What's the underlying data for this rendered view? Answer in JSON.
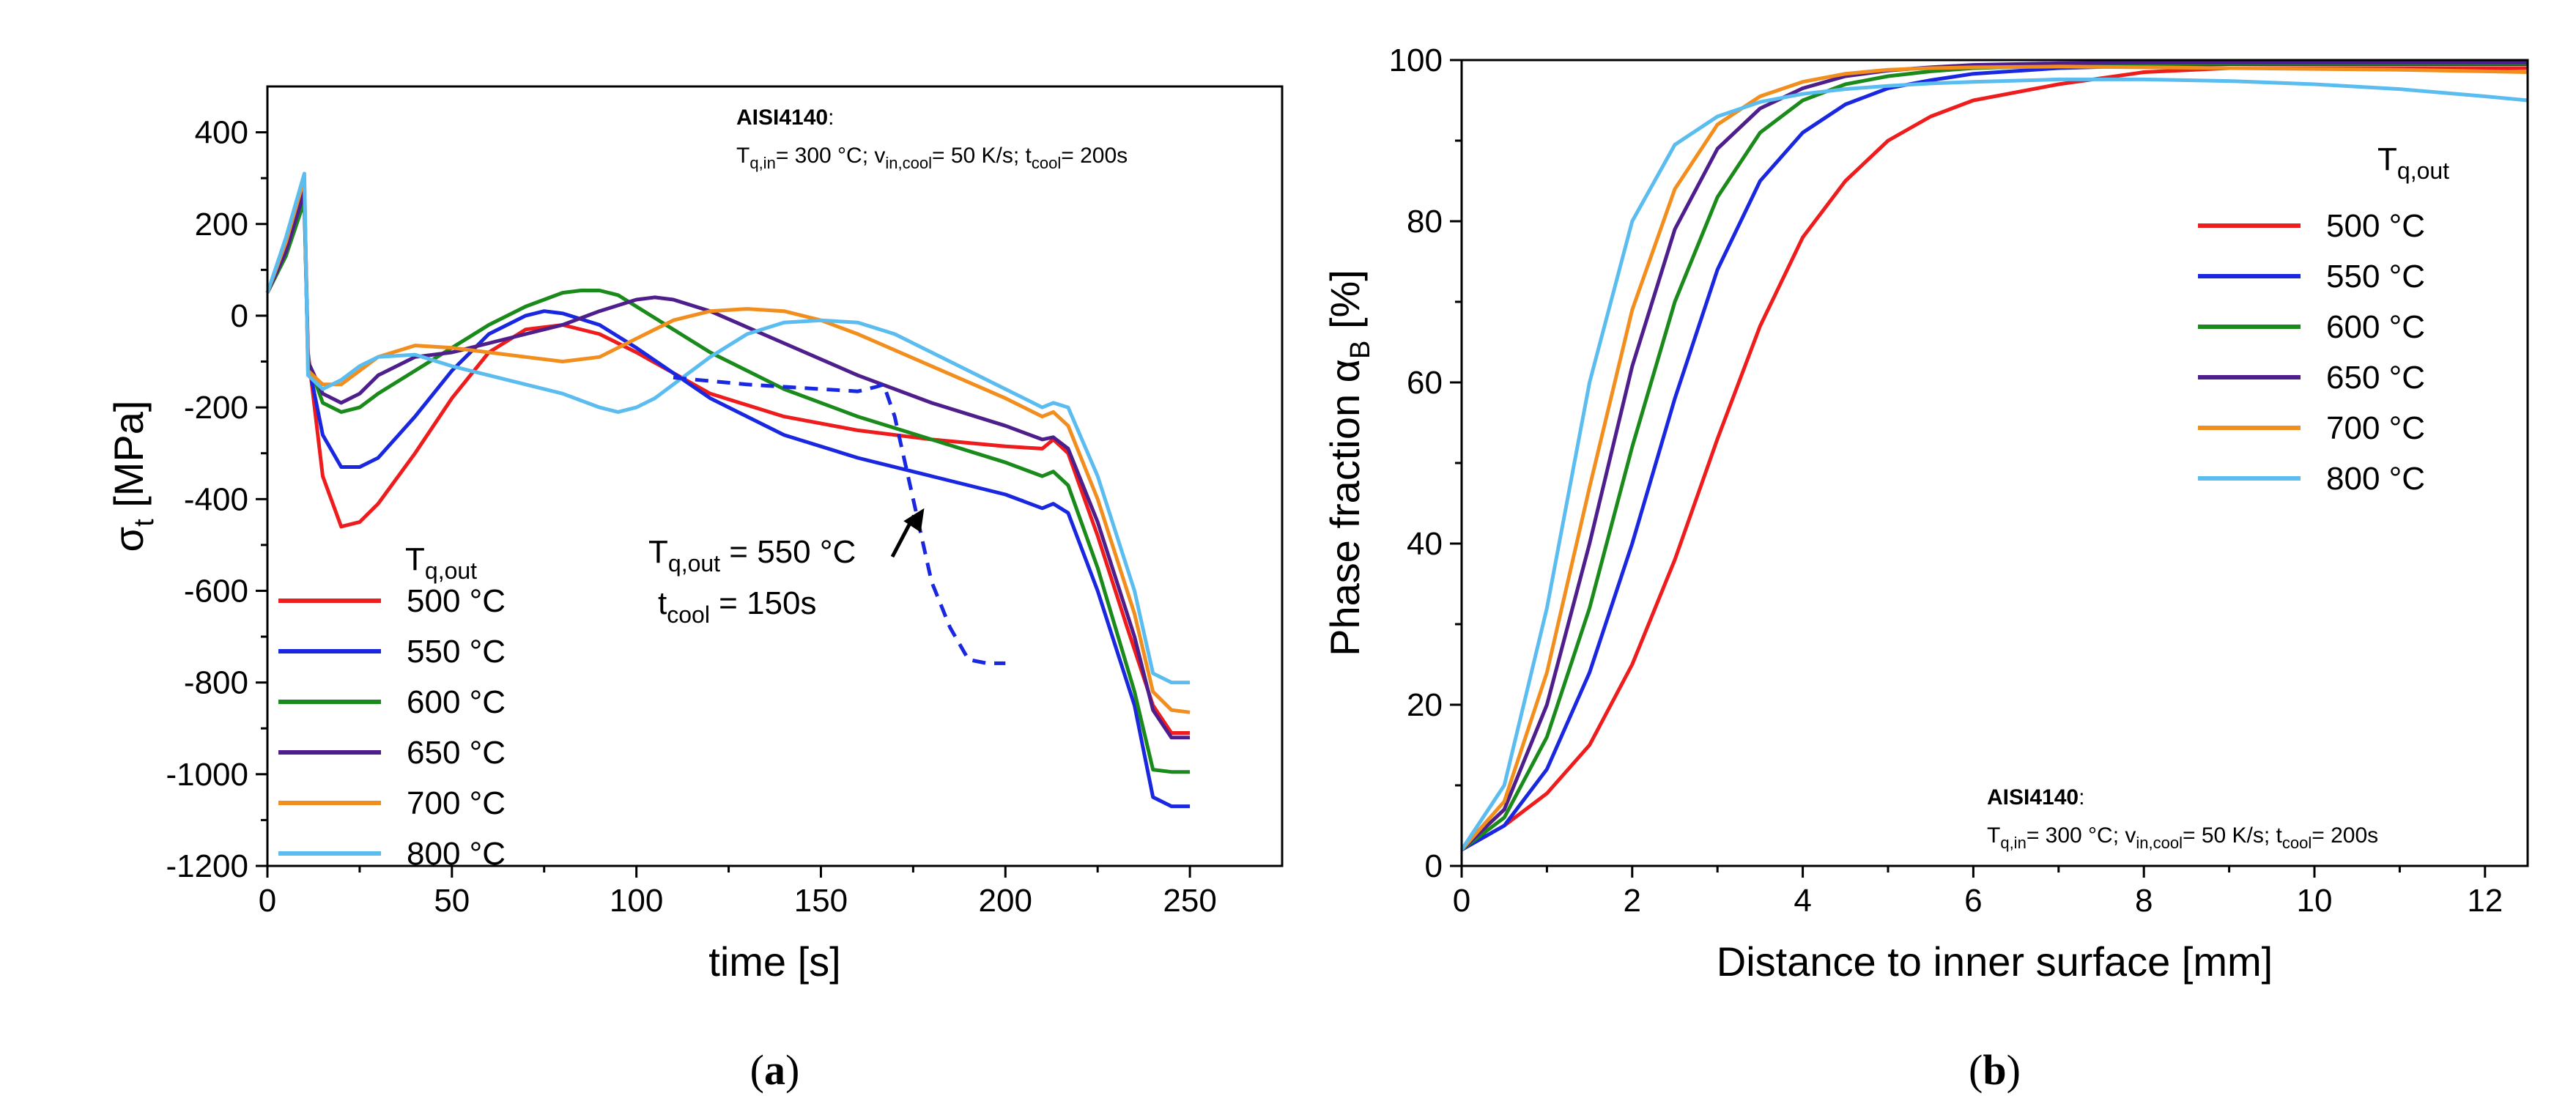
{
  "chart_data": [
    {
      "type": "line",
      "panel_label": "a",
      "xlabel": "time [s]",
      "ylabel": "σt [MPa]",
      "ylabel_main": "σ",
      "ylabel_sub": "t",
      "ylabel_rest": " [MPa]",
      "xlim": [
        0,
        275
      ],
      "ylim": [
        -1200,
        500
      ],
      "xticks": [
        0,
        50,
        100,
        150,
        200,
        250
      ],
      "yticks": [
        -1200,
        -1000,
        -800,
        -600,
        -400,
        -200,
        0,
        200,
        400
      ],
      "xtick_labels": [
        "0",
        "50",
        "100",
        "150",
        "200",
        "250"
      ],
      "ytick_labels": [
        "-1200",
        "-1000",
        "-800",
        "-600",
        "-400",
        "-200",
        "0",
        "200",
        "400"
      ],
      "legend": {
        "title": "Tq,out",
        "title_main": "T",
        "title_sub": "q,out",
        "placement": "bottom-left"
      },
      "annotation": {
        "material": "AISI4140",
        "material_suffix": ":",
        "conditions": "Tq,in= 300 °C; vin,cool= 50 K/s; tcool= 200s",
        "c1": "T",
        "c1s": "q,in",
        "c1r": "= 300 °C; v",
        "c2s": "in,cool",
        "c2r": "= 50 K/s; t",
        "c3s": "cool",
        "c3r": "= 200s"
      },
      "arrow_note": {
        "line1": "Tq,out = 550 °C",
        "l1m": "T",
        "l1s": "q,out",
        "l1r": " = 550 °C",
        "line2": "tcool = 150s",
        "l2m": "t",
        "l2s": "cool",
        "l2r": " = 150s",
        "points_to": [
          178,
          -420
        ]
      },
      "series": [
        {
          "name": "500 °C",
          "color": "#ee1c1c",
          "dashed": false,
          "x": [
            0,
            5,
            10,
            11,
            15,
            20,
            25,
            30,
            40,
            50,
            60,
            70,
            80,
            90,
            100,
            120,
            140,
            160,
            180,
            200,
            210,
            213,
            217,
            225,
            233,
            240,
            245,
            250
          ],
          "y": [
            50,
            150,
            280,
            -80,
            -350,
            -460,
            -450,
            -410,
            -300,
            -180,
            -80,
            -30,
            -20,
            -40,
            -80,
            -170,
            -220,
            -250,
            -270,
            -285,
            -290,
            -270,
            -300,
            -480,
            -680,
            -850,
            -910,
            -910
          ]
        },
        {
          "name": "550 °C",
          "color": "#1a27e0",
          "dashed": false,
          "x": [
            0,
            5,
            10,
            11,
            15,
            20,
            25,
            30,
            40,
            50,
            60,
            70,
            75,
            80,
            90,
            100,
            120,
            140,
            160,
            180,
            200,
            210,
            213,
            217,
            225,
            235,
            240,
            245,
            250
          ],
          "y": [
            50,
            140,
            260,
            -100,
            -260,
            -330,
            -330,
            -310,
            -220,
            -120,
            -40,
            0,
            10,
            5,
            -20,
            -70,
            -180,
            -260,
            -310,
            -350,
            -390,
            -420,
            -410,
            -430,
            -600,
            -850,
            -1050,
            -1070,
            -1070
          ]
        },
        {
          "name": "600 °C",
          "color": "#1a8a1a",
          "dashed": false,
          "x": [
            0,
            5,
            10,
            11,
            15,
            20,
            25,
            30,
            40,
            50,
            60,
            70,
            80,
            85,
            90,
            95,
            100,
            120,
            140,
            160,
            180,
            200,
            210,
            213,
            217,
            225,
            235,
            240,
            245,
            250
          ],
          "y": [
            50,
            130,
            250,
            -100,
            -190,
            -210,
            -200,
            -170,
            -120,
            -70,
            -20,
            20,
            50,
            55,
            55,
            45,
            20,
            -80,
            -160,
            -220,
            -270,
            -320,
            -350,
            -340,
            -370,
            -550,
            -820,
            -990,
            -995,
            -995
          ]
        },
        {
          "name": "650 °C",
          "color": "#4e1f8c",
          "dashed": false,
          "x": [
            0,
            5,
            10,
            11,
            15,
            20,
            25,
            30,
            40,
            50,
            60,
            70,
            80,
            90,
            100,
            105,
            110,
            120,
            140,
            160,
            180,
            200,
            210,
            213,
            217,
            225,
            235,
            240,
            245,
            250
          ],
          "y": [
            50,
            140,
            270,
            -100,
            -170,
            -190,
            -170,
            -130,
            -90,
            -80,
            -60,
            -40,
            -20,
            10,
            35,
            40,
            35,
            10,
            -60,
            -130,
            -190,
            -240,
            -270,
            -265,
            -290,
            -450,
            -700,
            -860,
            -920,
            -920
          ]
        },
        {
          "name": "700 °C",
          "color": "#f28e1e",
          "dashed": false,
          "x": [
            0,
            5,
            10,
            11,
            15,
            20,
            25,
            30,
            40,
            50,
            60,
            70,
            80,
            90,
            100,
            110,
            120,
            130,
            140,
            150,
            160,
            180,
            200,
            210,
            213,
            217,
            225,
            235,
            240,
            245,
            250
          ],
          "y": [
            50,
            160,
            300,
            -120,
            -150,
            -150,
            -120,
            -90,
            -65,
            -70,
            -80,
            -90,
            -100,
            -90,
            -50,
            -10,
            10,
            15,
            10,
            -10,
            -40,
            -110,
            -180,
            -220,
            -210,
            -240,
            -400,
            -650,
            -820,
            -860,
            -865
          ]
        },
        {
          "name": "800 °C",
          "color": "#5bbcf0",
          "dashed": false,
          "x": [
            0,
            5,
            10,
            11,
            15,
            20,
            25,
            30,
            40,
            50,
            60,
            70,
            80,
            90,
            95,
            100,
            105,
            110,
            120,
            130,
            140,
            150,
            160,
            170,
            180,
            200,
            210,
            213,
            217,
            225,
            235,
            240,
            245,
            250
          ],
          "y": [
            50,
            170,
            310,
            -130,
            -160,
            -140,
            -110,
            -90,
            -85,
            -110,
            -130,
            -150,
            -170,
            -200,
            -210,
            -200,
            -180,
            -150,
            -90,
            -40,
            -15,
            -10,
            -15,
            -40,
            -80,
            -160,
            -200,
            -190,
            -200,
            -350,
            -600,
            -780,
            -800,
            -800
          ]
        },
        {
          "name": "550 °C, tcool = 150s",
          "color": "#1a27e0",
          "dashed": true,
          "legend": false,
          "x": [
            110,
            130,
            150,
            160,
            165,
            167,
            170,
            175,
            180,
            185,
            190,
            195,
            200
          ],
          "y": [
            -135,
            -150,
            -160,
            -165,
            -155,
            -150,
            -220,
            -400,
            -580,
            -680,
            -750,
            -758,
            -758
          ]
        }
      ]
    },
    {
      "type": "line",
      "panel_label": "b",
      "xlabel": "Distance to inner surface [mm]",
      "ylabel": "Phase fraction αB  [%]",
      "ylabel_main": "Phase fraction α",
      "ylabel_sub": "B",
      "ylabel_rest": "  [%]",
      "xlim": [
        0,
        12.5
      ],
      "ylim": [
        0,
        100
      ],
      "xticks": [
        0,
        2,
        4,
        6,
        8,
        10,
        12
      ],
      "yticks": [
        0,
        20,
        40,
        60,
        80,
        100
      ],
      "xtick_labels": [
        "0",
        "2",
        "4",
        "6",
        "8",
        "10",
        "12"
      ],
      "ytick_labels": [
        "0",
        "20",
        "40",
        "60",
        "80",
        "100"
      ],
      "legend": {
        "title": "Tq,out",
        "title_main": "T",
        "title_sub": "q,out",
        "placement": "right"
      },
      "annotation": {
        "material": "AISI4140",
        "material_suffix": ":",
        "conditions": "Tq,in= 300 °C; vin,cool= 50 K/s; tcool= 200s",
        "c1": "T",
        "c1s": "q,in",
        "c1r": "= 300 °C; v",
        "c2s": "in,cool",
        "c2r": "= 50 K/s; t",
        "c3s": "cool",
        "c3r": "= 200s"
      },
      "series": [
        {
          "name": "500 °C",
          "color": "#ee1c1c",
          "x": [
            0,
            0.5,
            1,
            1.5,
            2,
            2.5,
            3,
            3.5,
            4,
            4.5,
            5,
            5.5,
            6,
            7,
            8,
            9,
            10,
            11,
            12,
            12.5
          ],
          "y": [
            2,
            5,
            9,
            15,
            25,
            38,
            53,
            67,
            78,
            85,
            90,
            93,
            95,
            97,
            98.5,
            99,
            99,
            99,
            99,
            99
          ]
        },
        {
          "name": "550 °C",
          "color": "#1a27e0",
          "x": [
            0,
            0.5,
            1,
            1.5,
            2,
            2.5,
            3,
            3.5,
            4,
            4.5,
            5,
            5.5,
            6,
            7,
            8,
            9,
            10,
            11,
            12,
            12.5
          ],
          "y": [
            2,
            5,
            12,
            24,
            40,
            58,
            74,
            85,
            91,
            94.5,
            96.5,
            97.5,
            98.3,
            99,
            99.3,
            99.5,
            99.5,
            99.5,
            99.5,
            99.5
          ]
        },
        {
          "name": "600 °C",
          "color": "#1a8a1a",
          "x": [
            0,
            0.5,
            1,
            1.5,
            2,
            2.5,
            3,
            3.5,
            4,
            4.5,
            5,
            5.5,
            6,
            7,
            8,
            9,
            10,
            11,
            12,
            12.5
          ],
          "y": [
            2,
            6,
            16,
            32,
            52,
            70,
            83,
            91,
            95,
            97,
            98,
            98.6,
            99,
            99.3,
            99.5,
            99.6,
            99.6,
            99.6,
            99.6,
            99.6
          ]
        },
        {
          "name": "650 °C",
          "color": "#4e1f8c",
          "x": [
            0,
            0.5,
            1,
            1.5,
            2,
            2.5,
            3,
            3.5,
            4,
            4.5,
            5,
            5.5,
            6,
            7,
            8,
            9,
            10,
            11,
            12,
            12.5
          ],
          "y": [
            2,
            7,
            20,
            40,
            62,
            79,
            89,
            94,
            96.5,
            98,
            98.7,
            99.1,
            99.4,
            99.6,
            99.7,
            99.7,
            99.7,
            99.7,
            99.7,
            99.7
          ]
        },
        {
          "name": "700 °C",
          "color": "#f28e1e",
          "x": [
            0,
            0.5,
            1,
            1.5,
            2,
            2.5,
            3,
            3.5,
            4,
            4.5,
            5,
            5.5,
            6,
            7,
            8,
            9,
            10,
            11,
            12,
            12.5
          ],
          "y": [
            2,
            8,
            24,
            47,
            69,
            84,
            92,
            95.5,
            97.3,
            98.3,
            98.8,
            99,
            99.1,
            99.2,
            99.1,
            99,
            98.9,
            98.8,
            98.6,
            98.5
          ]
        },
        {
          "name": "800 °C",
          "color": "#5bbcf0",
          "x": [
            0,
            0.5,
            1,
            1.5,
            2,
            2.5,
            3,
            3.5,
            4,
            4.5,
            5,
            5.5,
            6,
            7,
            8,
            9,
            10,
            11,
            12,
            12.5
          ],
          "y": [
            2,
            10,
            32,
            60,
            80,
            89.5,
            93,
            94.8,
            95.8,
            96.4,
            96.8,
            97.1,
            97.3,
            97.6,
            97.6,
            97.4,
            97,
            96.4,
            95.5,
            95
          ]
        }
      ]
    }
  ]
}
